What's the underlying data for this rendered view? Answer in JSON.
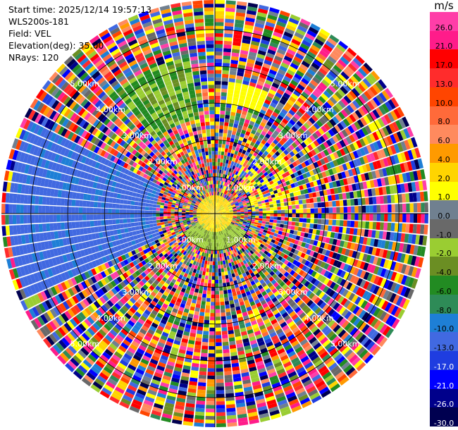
{
  "header": {
    "start_time": "Start time: 2025/12/14 19:57:13",
    "instrument": "WLS200s-181",
    "field": "Field: VEL",
    "elevation": "Elevation(deg): 35.00",
    "nrays": "NRays: 120"
  },
  "colorbar": {
    "unit": "m/s",
    "labels": [
      "26.0",
      "21.0",
      "17.0",
      "13.0",
      "10.0",
      "8.0",
      "6.0",
      "4.0",
      "2.0",
      "1.0",
      "0.0",
      "-1.0",
      "-2.0",
      "-4.0",
      "-6.0",
      "-8.0",
      "-10.0",
      "-13.0",
      "-17.0",
      "-21.0",
      "-26.0",
      "-30.0"
    ],
    "colors": [
      "#ff3ea8",
      "#ff1c8a",
      "#ff0000",
      "#ff2c2c",
      "#ff4500",
      "#ff6a3a",
      "#ff8a5e",
      "#ff9a00",
      "#ffd400",
      "#ffff00",
      "#708090",
      "#696969",
      "#9acd32",
      "#6b8e23",
      "#228b22",
      "#2e8b57",
      "#1e7fd6",
      "#4169e1",
      "#1f3de0",
      "#0000ff",
      "#00008b",
      "#000050"
    ]
  },
  "chart_data": {
    "type": "ppi",
    "field": "VEL",
    "elevation_deg": 35.0,
    "nrays": 120,
    "range_rings_km": [
      1.0,
      2.0,
      3.0,
      4.0,
      5.0
    ],
    "ring_labels": [
      "1.00km",
      "2.00km",
      "3.00km",
      "4.00km",
      "5.00km"
    ],
    "max_range_km": 5.8,
    "value_range": [
      -30.0,
      26.0
    ],
    "note_regions": [
      {
        "desc": "near-zero velocities near center",
        "value": 2.0
      },
      {
        "desc": "negative velocities west sector",
        "value": -13.0
      },
      {
        "desc": "green sector north-northwest",
        "value": -4.0
      },
      {
        "desc": "yellow patch north",
        "value": 2.0
      }
    ]
  }
}
